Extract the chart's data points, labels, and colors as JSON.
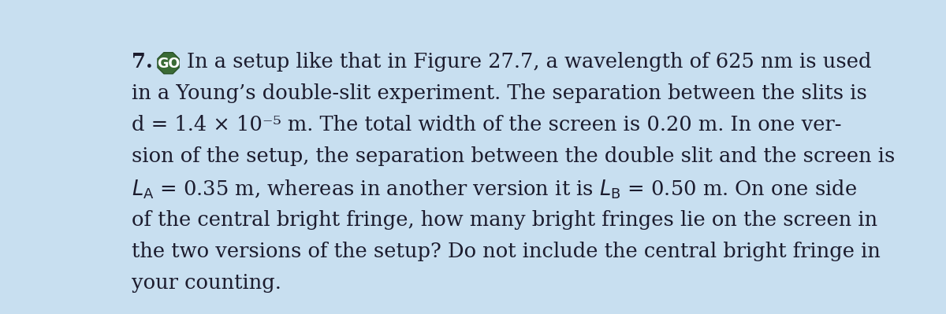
{
  "background_color": "#c8dff0",
  "text_color": "#1c1c2e",
  "number": "7.",
  "go_label": "GO",
  "go_bg_color": "#3a6b35",
  "go_text_color": "#ffffff",
  "go_border_color": "#2a5228",
  "line1_prefix": "In a setup like that in Figure 27.7, a wavelength of 625 nm is used",
  "line2": "in a Young’s double-slit experiment. The separation between the slits is",
  "line3": "d = 1.4 × 10⁻⁵ m. The total width of the screen is 0.20 m. In one ver-",
  "line4": "sion of the setup, the separation between the double slit and the screen is",
  "line5_a": "L",
  "line5_b": "A",
  "line5_c": " = 0.35 m, whereas in another version it is L",
  "line5_d": "B",
  "line5_e": " = 0.50 m. On one side",
  "line6": "of the central bright fringe, how many bright fringes lie on the screen in",
  "line7": "the two versions of the setup? Do not include the central bright fringe in",
  "line8": "your counting.",
  "font_size": 18.5,
  "fig_width": 12.0,
  "fig_height": 3.99
}
